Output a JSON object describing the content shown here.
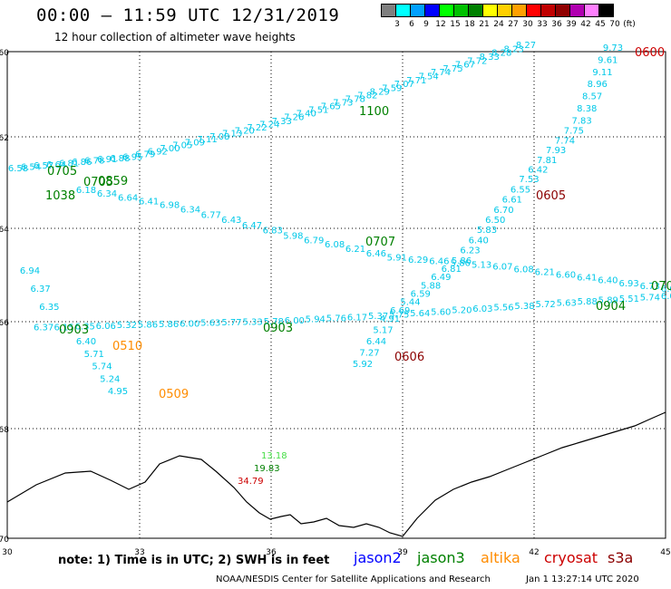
{
  "header": {
    "title": "00:00 – 11:59 UTC 12/31/2019",
    "subtitle": "12 hour collection of altimeter wave heights"
  },
  "color_scale": {
    "labels": [
      "3",
      "6",
      "9",
      "12",
      "15",
      "18",
      "21",
      "24",
      "27",
      "30",
      "33",
      "36",
      "39",
      "42",
      "45",
      "70",
      "(ft)"
    ],
    "colors": [
      "#7f7f7f",
      "#00ffff",
      "#00a0ff",
      "#0000ff",
      "#00ff00",
      "#00c000",
      "#008000",
      "#ffff00",
      "#ffd000",
      "#ffa000",
      "#ff0000",
      "#c00000",
      "#900000",
      "#b000b0",
      "#ff80ff",
      "#000000"
    ]
  },
  "map": {
    "lat_labels": [
      "-60",
      "-62",
      "-64",
      "-66",
      "-68",
      "-70"
    ],
    "lon_labels": [
      "30",
      "33",
      "36",
      "39",
      "42",
      "45"
    ],
    "colors": {
      "jason2": "#0000ff",
      "jason3": "#008000",
      "altika": "#ff8c00",
      "cryosat": "#cc0000",
      "s3a": "#8b0000",
      "track": "#00c8e8",
      "coast": "#000000",
      "grid": "#000000"
    },
    "tracks": [
      {
        "color": "track",
        "values": [
          "6.58",
          "6.54",
          "6.57",
          "6.64",
          "6.81",
          "6.86",
          "6.78",
          "6.91",
          "6.88",
          "6.95",
          "6.79",
          "6.92",
          "7.00",
          "7.05",
          "7.09",
          "7.11",
          "7.08",
          "7.13",
          "7.20",
          "7.22",
          "7.24",
          "7.33",
          "7.26",
          "7.40",
          "7.51",
          "7.65",
          "7.73",
          "7.78",
          "7.82",
          "8.29",
          "7.59",
          "7.07",
          "7.71",
          "7.54",
          "7.74",
          "7.75",
          "7.67",
          "7.72",
          "8.33",
          "8.28",
          "8.23",
          "8.27"
        ]
      },
      {
        "color": "track",
        "values": [
          "6.18",
          "6.34",
          "6.64",
          "6.41",
          "6.98",
          "6.34",
          "6.77",
          "6.43",
          "6.47",
          "6.83",
          "5.98",
          "6.79",
          "6.08",
          "6.21",
          "6.46",
          "5.91",
          "6.29",
          "6.46",
          "5.86",
          "5.13",
          "6.07",
          "6.08",
          "6.21",
          "6.60",
          "6.41",
          "6.40",
          "6.93",
          "6.73",
          "6.05"
        ]
      },
      {
        "color": "track",
        "values": [
          "6.94",
          "6.37",
          "6.35",
          "6.37",
          "6.15",
          "6.35",
          "6.06",
          "5.32",
          "5.86",
          "5.86",
          "6.00",
          "5.63",
          "5.77",
          "5.33",
          "5.78",
          "6.00",
          "5.94",
          "5.76",
          "6.17",
          "5.37",
          "5.75",
          "5.64",
          "5.60",
          "5.20",
          "6.03",
          "5.56",
          "5.38",
          "5.72",
          "5.63",
          "5.88",
          "5.89",
          "5.51",
          "5.74",
          "6.05"
        ]
      },
      {
        "color": "track",
        "values": [
          "6.40",
          "5.71",
          "5.74",
          "5.24",
          "4.95"
        ]
      },
      {
        "color": "track",
        "values": [
          "9.73",
          "9.61",
          "9.11",
          "8.96",
          "8.57",
          "8.38",
          "7.83",
          "7.75",
          "7.74",
          "7.93",
          "7.81",
          "6.42",
          "7.53",
          "6.55",
          "6.61",
          "6.70",
          "6.50",
          "5.83",
          "6.40",
          "6.23",
          "5.86",
          "6.81",
          "6.49",
          "5.88",
          "6.59",
          "5.44",
          "6.69",
          "4.91",
          "5.17",
          "6.44",
          "7.27",
          "5.92"
        ]
      }
    ],
    "labels": [
      {
        "text": "0705",
        "color": "jason3"
      },
      {
        "text": "0859",
        "color": "jason3"
      },
      {
        "text": "0705",
        "color": "jason3"
      },
      {
        "text": "1038",
        "color": "jason3"
      },
      {
        "text": "1100",
        "color": "jason3"
      },
      {
        "text": "0707",
        "color": "jason3"
      },
      {
        "text": "0903",
        "color": "jason3"
      },
      {
        "text": "0903",
        "color": "jason3"
      },
      {
        "text": "0904",
        "color": "jason3"
      },
      {
        "text": "070",
        "color": "jason3"
      },
      {
        "text": "0510",
        "color": "altika"
      },
      {
        "text": "0509",
        "color": "altika"
      },
      {
        "text": "0605",
        "color": "s3a"
      },
      {
        "text": "0606",
        "color": "s3a"
      },
      {
        "text": "0600",
        "color": "cryosat"
      },
      {
        "text": "13.18",
        "color": "#44dd44"
      },
      {
        "text": "19.83",
        "color": "jason3"
      },
      {
        "text": "34.79",
        "color": "cryosat"
      }
    ]
  },
  "footer": {
    "note": "note: 1) Time is in UTC; 2) SWH is in feet",
    "satellites": [
      {
        "name": "jason2",
        "color": "#0000ff"
      },
      {
        "name": "jason3",
        "color": "#008000"
      },
      {
        "name": "altika",
        "color": "#ff8c00"
      },
      {
        "name": "cryosat",
        "color": "#cc0000"
      },
      {
        "name": "s3a",
        "color": "#8b0000"
      }
    ],
    "credit": "NOAA/NESDIS Center for Satellite Applications and Research",
    "timestamp": "Jan  1 13:27:14 UTC 2020"
  }
}
